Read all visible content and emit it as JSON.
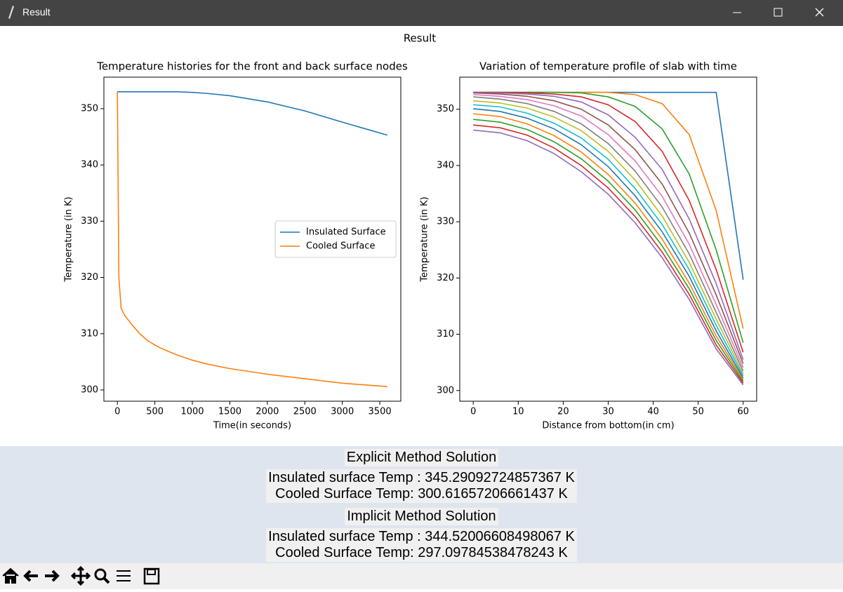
{
  "window": {
    "title": "Result"
  },
  "figure": {
    "title": "Result"
  },
  "chart_data": [
    {
      "type": "line",
      "title": "Temperature histories for the front and back surface nodes",
      "xlabel": "Time(in seconds)",
      "ylabel": "Temperature (in K)",
      "x": [
        0,
        20,
        50,
        100,
        200,
        300,
        400,
        500,
        600,
        800,
        1000,
        1200,
        1500,
        2000,
        2500,
        3000,
        3600
      ],
      "series": [
        {
          "name": "Insulated Surface",
          "color": "#1f77b4",
          "values": [
            353,
            353,
            353,
            353,
            353,
            353,
            353,
            353,
            353,
            353,
            352.9,
            352.7,
            352.3,
            351.2,
            349.6,
            347.6,
            345.3
          ]
        },
        {
          "name": "Cooled Surface",
          "color": "#ff7f0e",
          "values": [
            353,
            320,
            314.5,
            313.2,
            311.5,
            310,
            308.8,
            308,
            307.3,
            306.2,
            305.3,
            304.6,
            303.8,
            302.8,
            302,
            301.2,
            300.6
          ]
        }
      ],
      "xlim": [
        -180,
        3780
      ],
      "ylim": [
        298,
        355.6
      ],
      "xticks": [
        0,
        500,
        1000,
        1500,
        2000,
        2500,
        3000,
        3500
      ],
      "yticks": [
        300,
        310,
        320,
        330,
        340,
        350
      ],
      "legend": "center right"
    },
    {
      "type": "line",
      "title": "Variation of temperature profile of slab with time",
      "xlabel": "Distance from bottom(in cm)",
      "ylabel": "Temperature (in K)",
      "x": [
        0,
        6,
        12,
        18,
        24,
        30,
        36,
        42,
        48,
        54,
        60
      ],
      "series": [
        {
          "color": "#1f77b4",
          "values": [
            353,
            353,
            353,
            353,
            353,
            353,
            353,
            353,
            353,
            353,
            319.7
          ]
        },
        {
          "color": "#ff7f0e",
          "values": [
            353,
            353,
            353,
            353,
            353,
            353,
            352.6,
            351,
            345.5,
            332,
            311
          ]
        },
        {
          "color": "#2ca02c",
          "values": [
            353,
            353,
            353,
            353,
            352.9,
            352.2,
            350.5,
            346.5,
            338.5,
            325,
            308.5
          ]
        },
        {
          "color": "#d62728",
          "values": [
            353,
            353,
            352.9,
            352.7,
            352.2,
            350.8,
            347.8,
            342.5,
            333.8,
            321.5,
            306.8
          ]
        },
        {
          "color": "#9467bd",
          "values": [
            353,
            352.9,
            352.7,
            352.3,
            351.3,
            349,
            345,
            339.3,
            330.5,
            319,
            305.5
          ]
        },
        {
          "color": "#8c564b",
          "values": [
            352.9,
            352.7,
            352.3,
            351.5,
            350,
            347.2,
            342.8,
            336.7,
            328,
            317,
            304.8
          ]
        },
        {
          "color": "#e377c2",
          "values": [
            352.6,
            352.3,
            351.7,
            350.6,
            348.8,
            345.5,
            340.8,
            334.5,
            326,
            315.3,
            304.1
          ]
        },
        {
          "color": "#7f7f7f",
          "values": [
            352.2,
            351.8,
            351,
            349.6,
            347.4,
            343.9,
            339,
            332.6,
            324.3,
            313.9,
            303.5
          ]
        },
        {
          "color": "#bcbd22",
          "values": [
            351.5,
            351.1,
            350.2,
            348.6,
            346.2,
            342.5,
            337.4,
            331,
            322.8,
            312.7,
            303
          ]
        },
        {
          "color": "#17becf",
          "values": [
            350.8,
            350.4,
            349.3,
            347.5,
            344.9,
            341.1,
            335.9,
            329.5,
            321.5,
            311.6,
            302.6
          ]
        },
        {
          "color": "#1f77b4",
          "values": [
            350.1,
            349.6,
            348.4,
            346.5,
            343.7,
            339.8,
            334.6,
            328.2,
            320.3,
            310.6,
            302.2
          ]
        },
        {
          "color": "#ff7f0e",
          "values": [
            349.2,
            348.7,
            347.4,
            345.3,
            342.4,
            338.4,
            333.3,
            326.9,
            319.1,
            309.7,
            301.9
          ]
        },
        {
          "color": "#2ca02c",
          "values": [
            348.2,
            347.7,
            346.4,
            344.2,
            341.2,
            337.2,
            332.1,
            325.7,
            318.1,
            308.9,
            301.6
          ]
        },
        {
          "color": "#d62728",
          "values": [
            347.2,
            346.7,
            345.4,
            343.1,
            340,
            336,
            330.9,
            324.6,
            317.1,
            308.1,
            301.3
          ]
        },
        {
          "color": "#9467bd",
          "values": [
            346.3,
            345.8,
            344.4,
            342.1,
            338.9,
            334.9,
            329.8,
            323.6,
            316.2,
            307.4,
            301
          ]
        }
      ],
      "xlim": [
        -3,
        63
      ],
      "ylim": [
        298.1,
        355.7
      ],
      "xticks": [
        0,
        10,
        20,
        30,
        40,
        50,
        60
      ],
      "yticks": [
        300,
        310,
        320,
        330,
        340,
        350
      ]
    }
  ],
  "panel": {
    "explicit": {
      "heading": "Explicit Method Solution",
      "lines": [
        "Insulated surface Temp : 345.29092724857367 K",
        "Cooled Surface Temp: 300.61657206661437 K"
      ]
    },
    "implicit": {
      "heading": "Implicit Method Solution",
      "lines": [
        "Insulated surface Temp : 344.52006608498067 K",
        "Cooled Surface Temp: 297.09784538478243 K"
      ]
    }
  }
}
